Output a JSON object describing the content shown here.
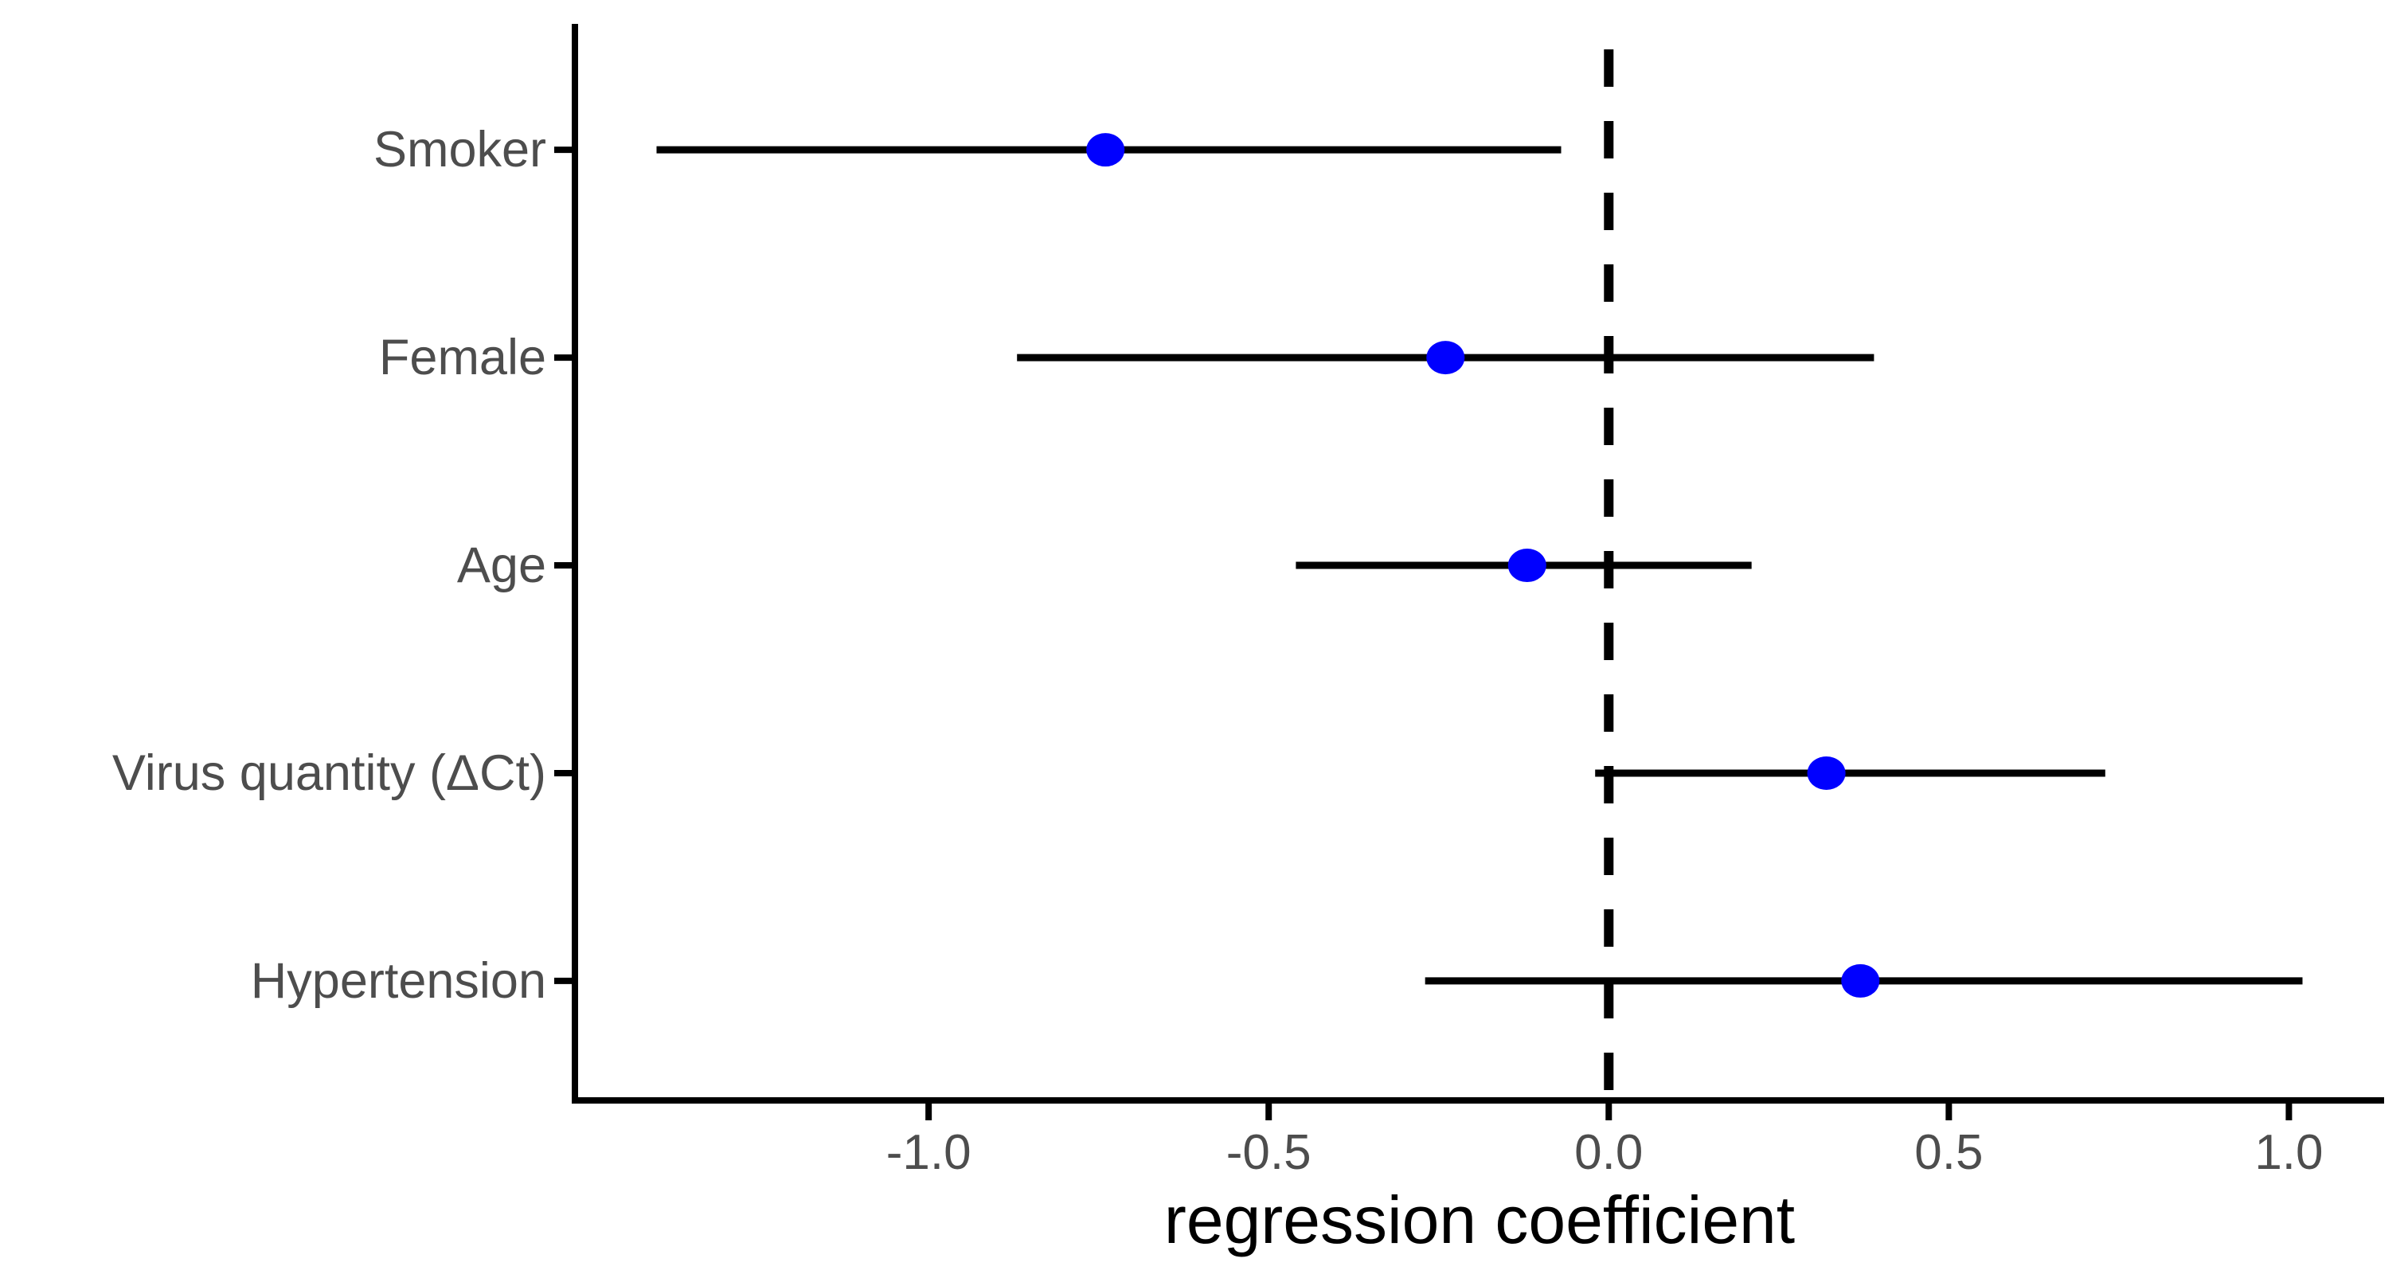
{
  "chart_data": {
    "type": "scatter",
    "subtype": "forest-plot",
    "title": "",
    "xlabel": "regression coefficient",
    "ylabel": "",
    "xlim": [
      -1.52,
      1.14
    ],
    "x_ticks": [
      -1.0,
      -0.5,
      0.0,
      0.5,
      1.0
    ],
    "x_tick_labels": [
      "-1.0",
      "-0.5",
      "0.0",
      "0.5",
      "1.0"
    ],
    "categories": [
      "Smoker",
      "Female",
      "Age",
      "Virus quantity (ΔCt)",
      "Hypertension"
    ],
    "points": [
      {
        "label": "Smoker",
        "estimate": -0.74,
        "ci_low": -1.4,
        "ci_high": -0.07
      },
      {
        "label": "Female",
        "estimate": -0.24,
        "ci_low": -0.87,
        "ci_high": 0.39
      },
      {
        "label": "Age",
        "estimate": -0.12,
        "ci_low": -0.46,
        "ci_high": 0.21
      },
      {
        "label": "Virus quantity (ΔCt)",
        "estimate": 0.32,
        "ci_low": -0.02,
        "ci_high": 0.73
      },
      {
        "label": "Hypertension",
        "estimate": 0.37,
        "ci_low": -0.27,
        "ci_high": 1.02
      }
    ],
    "reference_line": {
      "x": 0.0,
      "style": "dashed"
    },
    "grid": false,
    "legend": false,
    "colors": {
      "point": "#0000ff",
      "interval_line": "#000000",
      "axis_line": "#000000",
      "reference_line": "#000000",
      "tick_text": "#4d4d4d",
      "category_text": "#4d4d4d",
      "axis_title_text": "#000000",
      "background": "#ffffff"
    }
  }
}
